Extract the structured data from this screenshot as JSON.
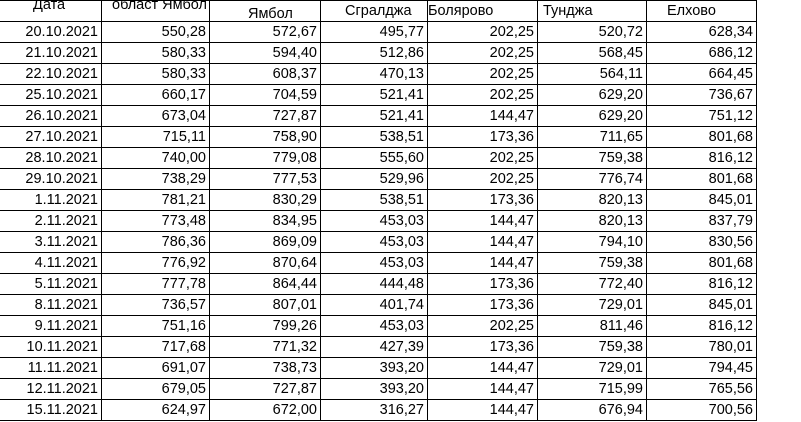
{
  "headers": [
    "Дата",
    "област Ямбол",
    "Ямбол",
    "Сгралджа",
    "Болярово",
    "Тунджа",
    "Елхово"
  ],
  "rows": [
    [
      "20.10.2021",
      "550,28",
      "572,67",
      "495,77",
      "202,25",
      "520,72",
      "628,34"
    ],
    [
      "21.10.2021",
      "580,33",
      "594,40",
      "512,86",
      "202,25",
      "568,45",
      "686,12"
    ],
    [
      "22.10.2021",
      "580,33",
      "608,37",
      "470,13",
      "202,25",
      "564,11",
      "664,45"
    ],
    [
      "25.10.2021",
      "660,17",
      "704,59",
      "521,41",
      "202,25",
      "629,20",
      "736,67"
    ],
    [
      "26.10.2021",
      "673,04",
      "727,87",
      "521,41",
      "144,47",
      "629,20",
      "751,12"
    ],
    [
      "27.10.2021",
      "715,11",
      "758,90",
      "538,51",
      "173,36",
      "711,65",
      "801,68"
    ],
    [
      "28.10.2021",
      "740,00",
      "779,08",
      "555,60",
      "202,25",
      "759,38",
      "816,12"
    ],
    [
      "29.10.2021",
      "738,29",
      "777,53",
      "529,96",
      "202,25",
      "776,74",
      "801,68"
    ],
    [
      "1.11.2021",
      "781,21",
      "830,29",
      "538,51",
      "173,36",
      "820,13",
      "845,01"
    ],
    [
      "2.11.2021",
      "773,48",
      "834,95",
      "453,03",
      "144,47",
      "820,13",
      "837,79"
    ],
    [
      "3.11.2021",
      "786,36",
      "869,09",
      "453,03",
      "144,47",
      "794,10",
      "830,56"
    ],
    [
      "4.11.2021",
      "776,92",
      "870,64",
      "453,03",
      "144,47",
      "759,38",
      "801,68"
    ],
    [
      "5.11.2021",
      "777,78",
      "864,44",
      "444,48",
      "173,36",
      "772,40",
      "816,12"
    ],
    [
      "8.11.2021",
      "736,57",
      "807,01",
      "401,74",
      "173,36",
      "729,01",
      "845,01"
    ],
    [
      "9.11.2021",
      "751,16",
      "799,26",
      "453,03",
      "202,25",
      "811,46",
      "816,12"
    ],
    [
      "10.11.2021",
      "717,68",
      "771,32",
      "427,39",
      "173,36",
      "759,38",
      "780,01"
    ],
    [
      "11.11.2021",
      "691,07",
      "738,73",
      "393,20",
      "144,47",
      "729,01",
      "794,45"
    ],
    [
      "12.11.2021",
      "679,05",
      "727,87",
      "393,20",
      "144,47",
      "715,99",
      "765,56"
    ],
    [
      "15.11.2021",
      "624,97",
      "672,00",
      "316,27",
      "144,47",
      "676,94",
      "700,56"
    ]
  ]
}
